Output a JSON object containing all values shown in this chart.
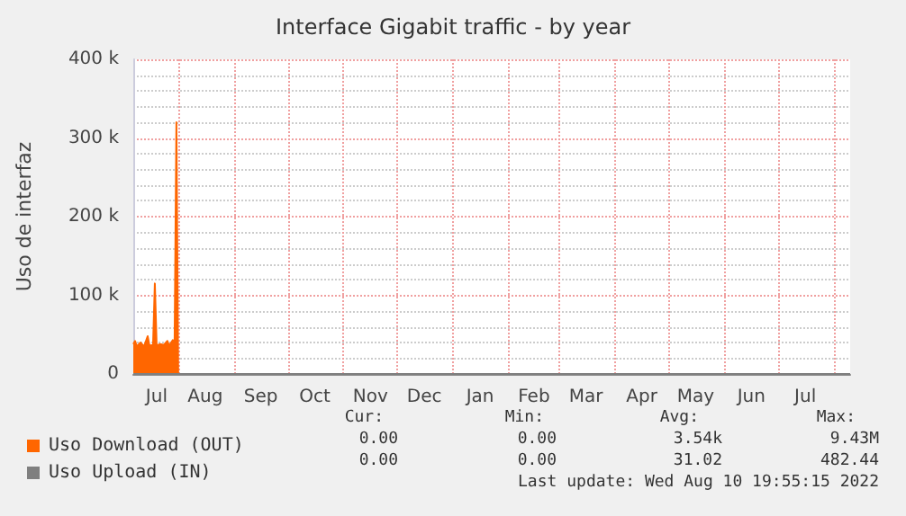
{
  "chart_data": {
    "type": "area",
    "title": "Interface Gigabit traffic - by year",
    "ylabel": "Uso de interfaz",
    "xlim": [
      "2021-07-07",
      "2022-08-10"
    ],
    "ylim": [
      0,
      400000
    ],
    "yticks": [
      {
        "value": 0,
        "label": "0"
      },
      {
        "value": 100000,
        "label": "100 k"
      },
      {
        "value": 200000,
        "label": "200 k"
      },
      {
        "value": 300000,
        "label": "300 k"
      },
      {
        "value": 400000,
        "label": "400 k"
      }
    ],
    "xticks": [
      {
        "value": "2021-07-20",
        "label": "Jul"
      },
      {
        "value": "2021-08-01",
        "label": null
      },
      {
        "value": "2021-08-16",
        "label": "Aug"
      },
      {
        "value": "2021-09-01",
        "label": null
      },
      {
        "value": "2021-09-16",
        "label": "Sep"
      },
      {
        "value": "2021-10-01",
        "label": null
      },
      {
        "value": "2021-10-16",
        "label": "Oct"
      },
      {
        "value": "2021-11-01",
        "label": null
      },
      {
        "value": "2021-11-16",
        "label": "Nov"
      },
      {
        "value": "2021-12-01",
        "label": null
      },
      {
        "value": "2021-12-16",
        "label": "Dec"
      },
      {
        "value": "2022-01-01",
        "label": null
      },
      {
        "value": "2022-01-16",
        "label": "Jan"
      },
      {
        "value": "2022-02-01",
        "label": null
      },
      {
        "value": "2022-02-15",
        "label": "Feb"
      },
      {
        "value": "2022-03-01",
        "label": null
      },
      {
        "value": "2022-03-16",
        "label": "Mar"
      },
      {
        "value": "2022-04-01",
        "label": null
      },
      {
        "value": "2022-04-16",
        "label": "Apr"
      },
      {
        "value": "2022-05-01",
        "label": null
      },
      {
        "value": "2022-05-16",
        "label": "May"
      },
      {
        "value": "2022-06-01",
        "label": null
      },
      {
        "value": "2022-06-16",
        "label": "Jun"
      },
      {
        "value": "2022-07-01",
        "label": null
      },
      {
        "value": "2022-07-16",
        "label": "Jul"
      },
      {
        "value": "2022-08-01",
        "label": null
      }
    ],
    "grid": true,
    "legend": "bottom left",
    "marker": "none",
    "series": [
      {
        "name": "Uso Download (OUT)",
        "color": "#ff6600",
        "x": [
          "2021-07-07",
          "2021-07-08",
          "2021-07-09",
          "2021-07-11",
          "2021-07-13",
          "2021-07-15",
          "2021-07-16",
          "2021-07-18",
          "2021-07-19",
          "2021-07-20",
          "2021-07-22",
          "2021-07-24",
          "2021-07-26",
          "2021-07-27",
          "2021-07-29",
          "2021-07-30",
          "2021-07-31",
          "2021-08-01",
          "2022-08-10"
        ],
        "values": [
          38000,
          42000,
          35000,
          40000,
          35000,
          48000,
          36000,
          37000,
          115000,
          36000,
          38000,
          37000,
          42000,
          36000,
          43000,
          40000,
          320000,
          0,
          0
        ]
      },
      {
        "name": "Uso Upload (IN)",
        "color": "#7f7f7f",
        "type": "line",
        "x": [
          "2021-07-07",
          "2022-08-10"
        ],
        "values": [
          0,
          0
        ]
      }
    ],
    "annotations": [
      "Cur:",
      "Min:",
      "Avg:",
      "Max:",
      "0.00",
      "0.00",
      "3.54k",
      "9.43M",
      "0.00",
      "0.00",
      "31.02",
      "482.44",
      "Last update: Wed Aug 10 19:55:15 2022"
    ]
  }
}
